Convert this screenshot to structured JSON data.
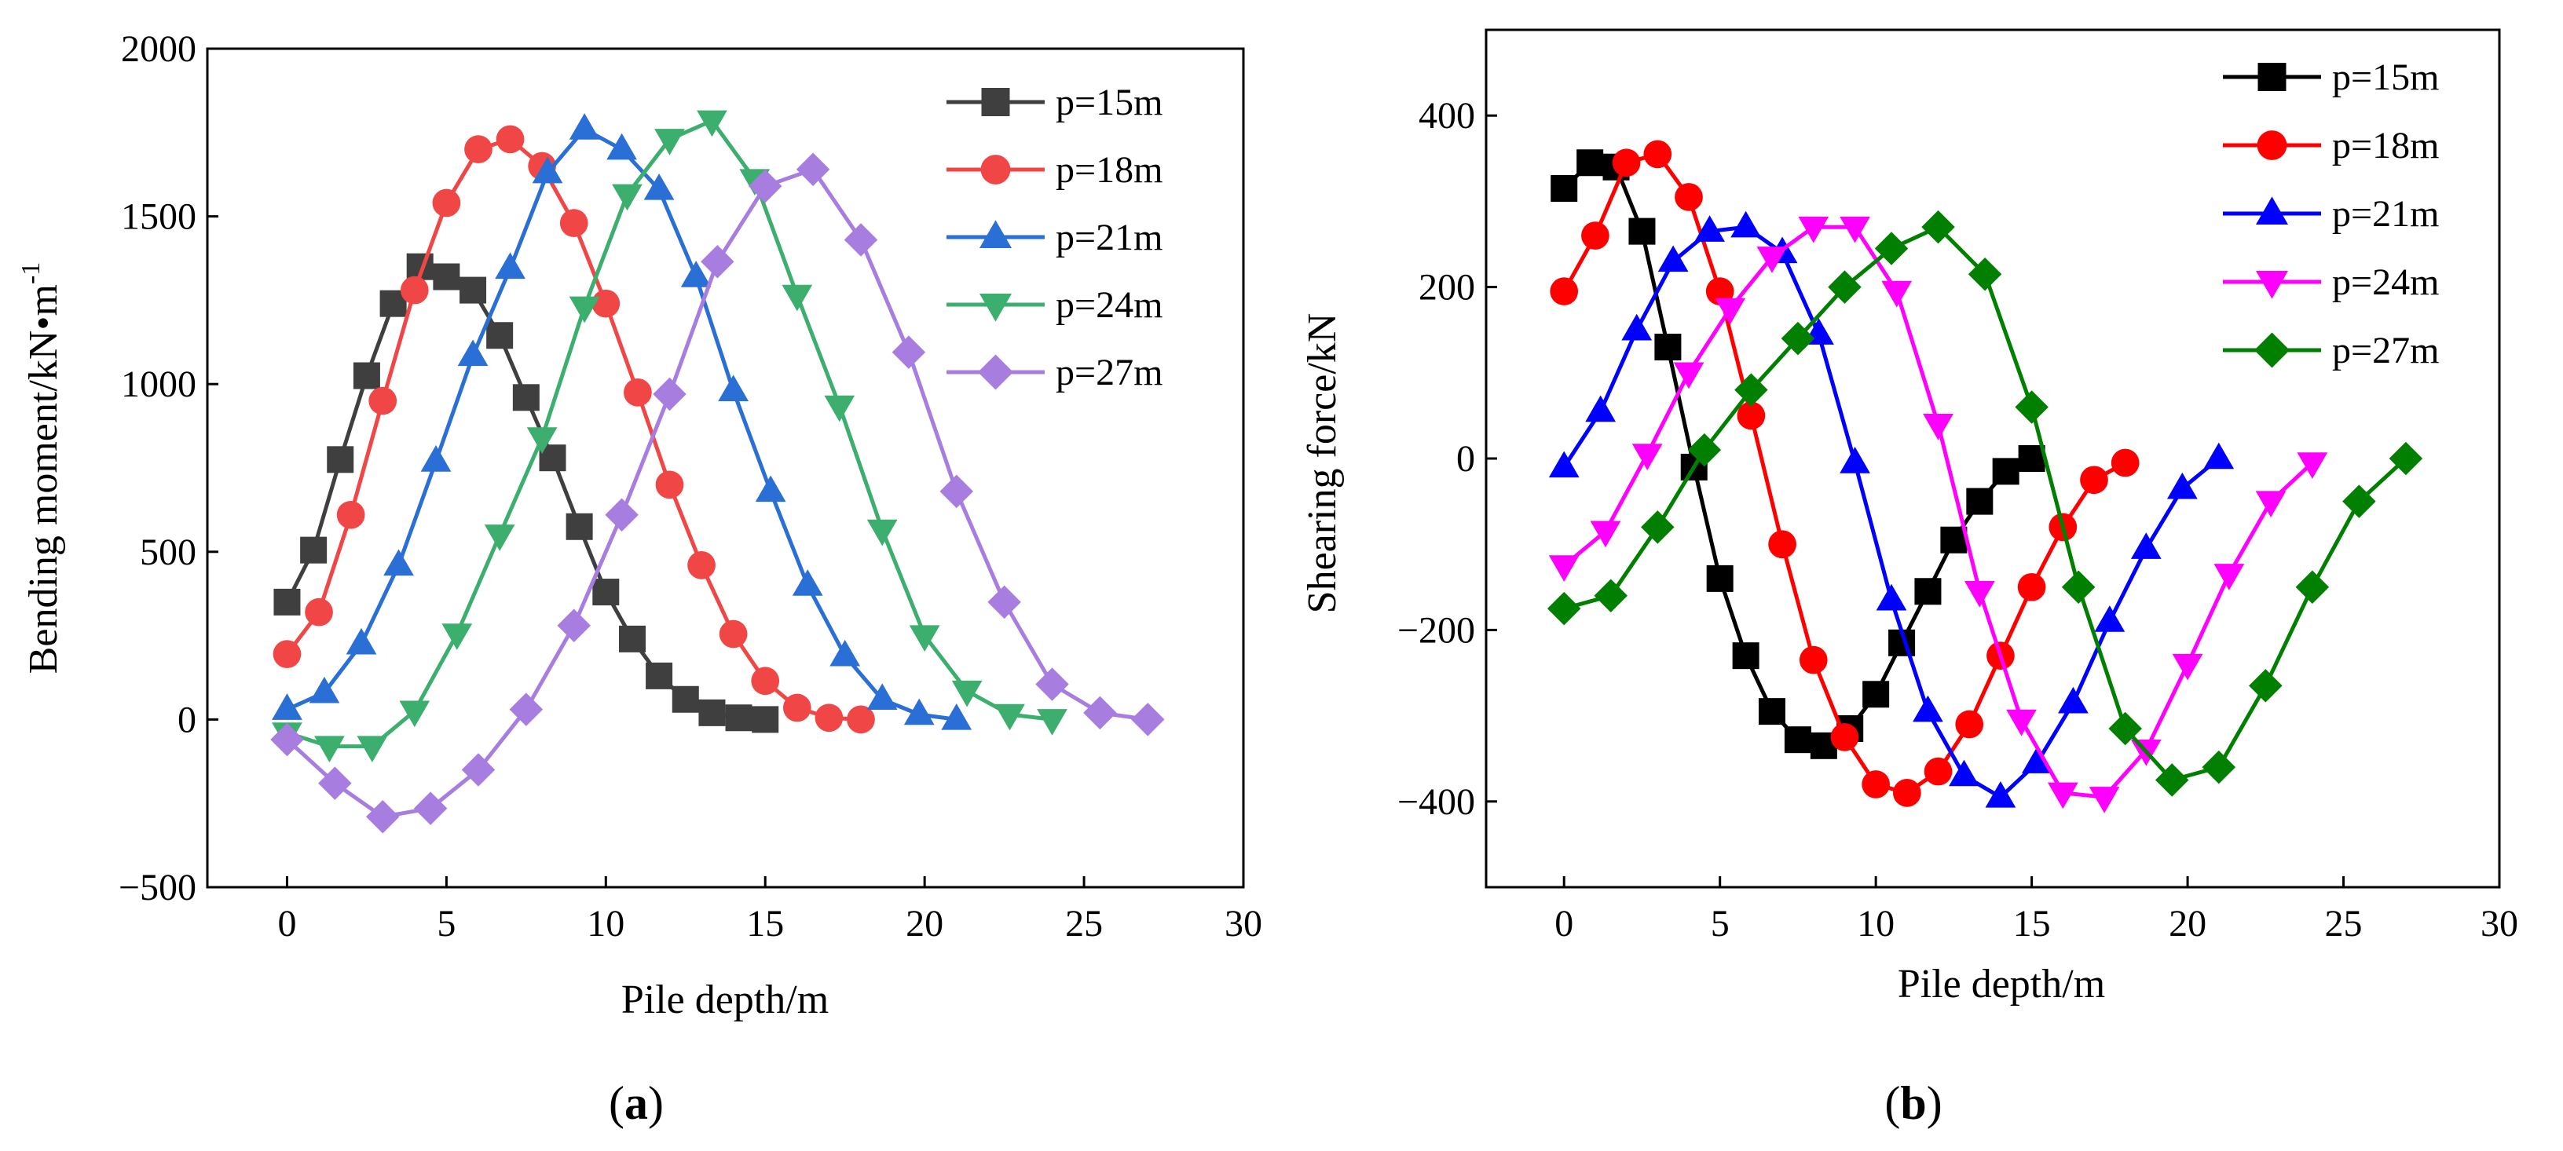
{
  "chart_data": [
    {
      "type": "line",
      "panel_label": "a",
      "title": "",
      "xlabel": "Pile depth/m",
      "ylabel": "Bending moment/kN•m",
      "ylabel_sup": "-1",
      "xlim": [
        -2.5,
        30
      ],
      "ylim": [
        -500,
        2000
      ],
      "xticks": [
        0,
        5,
        10,
        15,
        20,
        25,
        30
      ],
      "yticks": [
        -500,
        0,
        500,
        1000,
        1500,
        2000
      ],
      "xtick_labels": [
        "0",
        "5",
        "10",
        "15",
        "20",
        "25",
        "30"
      ],
      "ytick_labels": [
        "−500",
        "0",
        "500",
        "1000",
        "1500",
        "2000"
      ],
      "grid": false,
      "legend_position": "top-right",
      "series": [
        {
          "name": "p=15m",
          "color": "#3f3f3f",
          "marker": "square",
          "x": [
            0,
            0.83,
            1.67,
            2.5,
            3.33,
            4.17,
            5,
            5.83,
            6.67,
            7.5,
            8.33,
            9.17,
            10,
            10.83,
            11.67,
            12.5,
            13.33,
            14.17,
            15
          ],
          "y": [
            350,
            505,
            775,
            1025,
            1240,
            1350,
            1320,
            1280,
            1145,
            960,
            780,
            575,
            380,
            240,
            130,
            60,
            20,
            5,
            0
          ]
        },
        {
          "name": "p=18m",
          "color": "#f04646",
          "marker": "circle",
          "x": [
            0,
            1,
            2,
            3,
            4,
            5,
            6,
            7,
            8,
            9,
            10,
            11,
            12,
            13,
            14,
            15,
            16,
            17,
            18
          ],
          "y": [
            195,
            320,
            610,
            950,
            1280,
            1540,
            1700,
            1730,
            1650,
            1480,
            1240,
            975,
            700,
            460,
            255,
            115,
            35,
            5,
            0
          ]
        },
        {
          "name": "p=21m",
          "color": "#2a6fd6",
          "marker": "triangle-up",
          "x": [
            0,
            1.17,
            2.33,
            3.5,
            4.67,
            5.83,
            7,
            8.17,
            9.33,
            10.5,
            11.67,
            12.83,
            14,
            15.17,
            16.33,
            17.5,
            18.67,
            19.83,
            21
          ],
          "y": [
            30,
            80,
            225,
            460,
            770,
            1085,
            1345,
            1630,
            1760,
            1700,
            1580,
            1320,
            980,
            680,
            400,
            190,
            60,
            15,
            0
          ]
        },
        {
          "name": "p=24m",
          "color": "#3cae6e",
          "marker": "triangle-down",
          "x": [
            0,
            1.33,
            2.67,
            4,
            5.33,
            6.67,
            8,
            9.33,
            10.67,
            12,
            13.33,
            14.67,
            16,
            17.33,
            18.67,
            20,
            21.33,
            22.67,
            24
          ],
          "y": [
            -40,
            -80,
            -80,
            25,
            255,
            550,
            840,
            1230,
            1565,
            1730,
            1785,
            1610,
            1265,
            935,
            565,
            250,
            85,
            15,
            0
          ]
        },
        {
          "name": "p=27m",
          "color": "#a77ee0",
          "marker": "diamond",
          "x": [
            0,
            1.5,
            3,
            4.5,
            6,
            7.5,
            9,
            10.5,
            12,
            13.5,
            15,
            16.5,
            18,
            19.5,
            21,
            22.5,
            24,
            25.5,
            27
          ],
          "y": [
            -60,
            -190,
            -290,
            -265,
            -150,
            30,
            280,
            610,
            970,
            1365,
            1590,
            1640,
            1430,
            1095,
            680,
            350,
            105,
            20,
            0
          ]
        }
      ]
    },
    {
      "type": "line",
      "panel_label": "b",
      "title": "",
      "xlabel": "Pile depth/m",
      "ylabel": "Shearing force/kN",
      "xlim": [
        -2.5,
        30
      ],
      "ylim": [
        -500,
        500
      ],
      "xticks": [
        0,
        5,
        10,
        15,
        20,
        25,
        30
      ],
      "yticks": [
        -400,
        -200,
        0,
        200,
        400
      ],
      "xtick_labels": [
        "0",
        "5",
        "10",
        "15",
        "20",
        "25",
        "30"
      ],
      "ytick_labels": [
        "−400",
        "−200",
        "0",
        "200",
        "400"
      ],
      "grid": false,
      "legend_position": "top-right",
      "series": [
        {
          "name": "p=15m",
          "color": "#000000",
          "marker": "square",
          "x": [
            0,
            0.83,
            1.67,
            2.5,
            3.33,
            4.17,
            5,
            5.83,
            6.67,
            7.5,
            8.33,
            9.17,
            10,
            10.83,
            11.67,
            12.5,
            13.33,
            14.17,
            15
          ],
          "y": [
            315,
            345,
            340,
            265,
            130,
            -10,
            -140,
            -230,
            -295,
            -328,
            -335,
            -315,
            -275,
            -215,
            -155,
            -95,
            -50,
            -15,
            0
          ]
        },
        {
          "name": "p=18m",
          "color": "#ff0000",
          "marker": "circle",
          "x": [
            0,
            1,
            2,
            3,
            4,
            5,
            6,
            7,
            8,
            9,
            10,
            11,
            12,
            13,
            14,
            15,
            16,
            17,
            18
          ],
          "y": [
            195,
            260,
            345,
            355,
            305,
            195,
            50,
            -100,
            -235,
            -325,
            -380,
            -390,
            -365,
            -310,
            -230,
            -150,
            -80,
            -25,
            -5
          ]
        },
        {
          "name": "p=21m",
          "color": "#0000ff",
          "marker": "triangle-up",
          "x": [
            0,
            1.17,
            2.33,
            3.5,
            4.67,
            5.83,
            7,
            8.17,
            9.33,
            10.5,
            11.67,
            12.83,
            14,
            15.17,
            16.33,
            17.5,
            18.67,
            19.83,
            21
          ],
          "y": [
            -10,
            55,
            150,
            230,
            265,
            270,
            240,
            145,
            -5,
            -165,
            -295,
            -370,
            -395,
            -355,
            -285,
            -190,
            -105,
            -35,
            0
          ]
        },
        {
          "name": "p=24m",
          "color": "#ff00ff",
          "marker": "triangle-down",
          "x": [
            0,
            1.33,
            2.67,
            4,
            5.33,
            6.67,
            8,
            9.33,
            10.67,
            12,
            13.33,
            14.67,
            16,
            17.33,
            18.67,
            20,
            21.33,
            22.67,
            24
          ],
          "y": [
            -125,
            -85,
            5,
            100,
            175,
            235,
            270,
            270,
            195,
            40,
            -155,
            -305,
            -390,
            -395,
            -340,
            -240,
            -135,
            -50,
            -5
          ]
        },
        {
          "name": "p=27m",
          "color": "#007f00",
          "marker": "diamond",
          "x": [
            0,
            1.5,
            3,
            4.5,
            6,
            7.5,
            9,
            10.5,
            12,
            13.5,
            15,
            16.5,
            18,
            19.5,
            21,
            22.5,
            24,
            25.5,
            27
          ],
          "y": [
            -175,
            -160,
            -80,
            10,
            80,
            140,
            200,
            245,
            270,
            215,
            60,
            -150,
            -315,
            -375,
            -360,
            -265,
            -150,
            -50,
            0
          ]
        }
      ]
    }
  ]
}
